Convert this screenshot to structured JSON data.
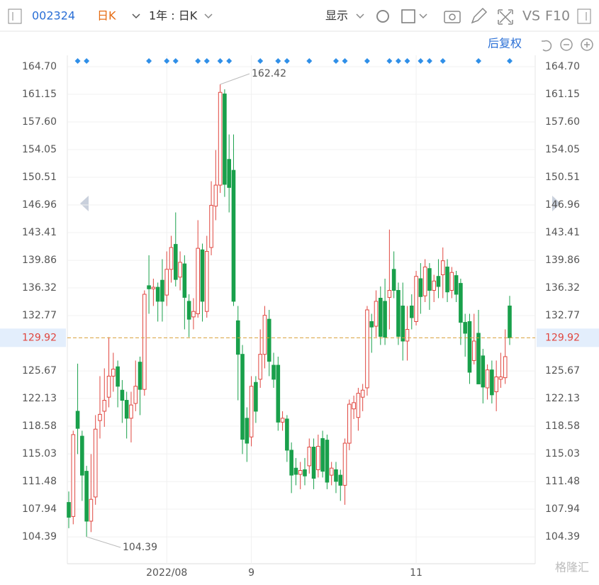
{
  "ui": {
    "code": "002324",
    "period": "日K",
    "range": "1年 : 日K",
    "display": "显示",
    "vs": "VS",
    "f10": "F10",
    "adjust": "后复权",
    "watermark": "格隆汇"
  },
  "chart_data": {
    "type": "candlestick",
    "open": [
      108.8,
      107.0,
      120.5,
      117.3,
      112.8,
      106.4,
      109.5,
      119.3,
      120.5,
      122.3,
      125.0,
      126.2,
      123.2,
      121.9,
      119.6,
      121.5,
      126.8,
      123.3,
      136.6,
      136.2,
      136.4,
      137.3,
      135.4,
      138.7,
      141.9,
      137.7,
      139.4,
      134.6,
      132.6,
      133.0,
      141.2,
      133.3,
      141.5,
      146.8,
      149.5,
      161.2,
      152.8,
      151.4,
      132.1,
      127.8,
      119.6,
      117.2,
      124.2,
      124.6,
      127.8,
      132.3,
      126.4,
      126.4,
      119.1,
      119.5,
      115.5,
      113.2,
      112.4,
      113.0,
      113.5,
      115.9,
      113.0,
      117.0,
      116.8,
      112.3,
      113.0,
      112.3,
      111.0,
      116.4,
      120.8,
      119.7,
      122.3,
      123.5,
      132.0,
      131.4,
      135.0,
      134.6,
      135.1,
      138.7,
      136.0,
      134.0,
      129.5,
      134.0,
      132.0,
      137.5,
      135.3,
      138.8,
      136.0,
      137.8,
      138.0,
      139.0,
      136.0,
      137.9,
      136.9,
      131.9,
      132.0,
      127.0,
      130.5,
      127.6,
      123.5,
      125.8,
      123.0,
      124.6,
      124.8,
      134.0
    ],
    "high": [
      110.2,
      118.0,
      126.6,
      118.0,
      113.5,
      115.0,
      120.0,
      125.0,
      126.0,
      130.0,
      128.0,
      127.0,
      124.5,
      123.0,
      123.0,
      127.0,
      127.5,
      136.0,
      140.5,
      137.5,
      137.0,
      140.0,
      141.0,
      143.0,
      146.0,
      141.0,
      140.5,
      135.5,
      135.0,
      145.0,
      142.0,
      143.0,
      150.0,
      154.0,
      162.42,
      161.8,
      156.0,
      156.0,
      134.0,
      129.0,
      121.0,
      125.0,
      125.0,
      131.0,
      134.0,
      133.5,
      128.0,
      127.5,
      120.5,
      120.0,
      116.5,
      114.5,
      114.0,
      114.5,
      117.0,
      117.0,
      117.5,
      118.0,
      117.5,
      114.0,
      114.0,
      113.0,
      117.0,
      122.0,
      122.5,
      123.5,
      124.0,
      134.0,
      133.0,
      136.0,
      136.5,
      137.5,
      143.8,
      141.0,
      137.0,
      137.0,
      134.0,
      135.5,
      138.5,
      139.5,
      140.0,
      139.5,
      138.0,
      140.0,
      141.5,
      140.0,
      139.0,
      138.5,
      137.5,
      133.0,
      133.0,
      133.0,
      133.5,
      128.5,
      126.5,
      127.0,
      127.0,
      128.0,
      131.0,
      135.3
    ],
    "low": [
      105.5,
      106.0,
      115.0,
      109.0,
      104.39,
      105.0,
      108.5,
      117.0,
      118.5,
      121.0,
      123.0,
      121.0,
      119.0,
      117.0,
      116.5,
      120.5,
      120.0,
      122.5,
      133.0,
      134.0,
      132.0,
      132.0,
      134.0,
      137.0,
      136.5,
      136.0,
      131.0,
      130.0,
      131.0,
      132.5,
      132.0,
      132.5,
      140.5,
      145.0,
      148.5,
      148.0,
      146.0,
      134.0,
      121.9,
      115.0,
      114.0,
      116.0,
      119.0,
      123.5,
      126.0,
      125.0,
      123.5,
      118.0,
      118.0,
      114.0,
      110.0,
      111.0,
      110.5,
      111.0,
      112.5,
      110.5,
      112.0,
      112.0,
      110.5,
      111.0,
      110.0,
      109.0,
      108.5,
      115.5,
      119.5,
      118.0,
      120.5,
      122.5,
      128.0,
      130.0,
      129.0,
      129.0,
      131.0,
      135.0,
      129.0,
      127.0,
      127.0,
      131.0,
      131.5,
      133.0,
      134.5,
      133.5,
      134.5,
      135.0,
      135.0,
      134.5,
      135.0,
      134.5,
      129.0,
      127.5,
      124.0,
      126.5,
      124.0,
      121.5,
      122.0,
      121.5,
      120.5,
      123.5,
      124.0,
      129.0
    ],
    "close": [
      106.9,
      117.5,
      118.3,
      112.3,
      106.4,
      109.2,
      118.2,
      120.1,
      121.9,
      125.0,
      125.9,
      123.7,
      121.9,
      119.6,
      121.3,
      123.7,
      123.3,
      135.5,
      136.2,
      136.4,
      134.6,
      134.6,
      138.7,
      141.5,
      137.4,
      139.6,
      135.1,
      132.3,
      133.3,
      141.4,
      134.6,
      141.0,
      146.9,
      149.5,
      161.4,
      149.6,
      149.2,
      134.6,
      127.8,
      116.9,
      116.4,
      123.7,
      120.5,
      127.8,
      132.8,
      126.9,
      124.6,
      119.1,
      119.6,
      115.5,
      112.3,
      112.4,
      112.9,
      112.2,
      115.9,
      111.9,
      116.0,
      112.8,
      111.4,
      113.2,
      111.5,
      111.0,
      116.4,
      121.4,
      121.6,
      122.8,
      123.2,
      133.5,
      131.3,
      134.6,
      130.1,
      130.0,
      136.0,
      136.0,
      130.1,
      129.5,
      131.0,
      132.5,
      137.8,
      135.2,
      139.0,
      136.0,
      137.2,
      136.5,
      139.8,
      135.8,
      138.3,
      135.5,
      131.9,
      130.5,
      125.5,
      129.5,
      124.0,
      123.6,
      125.8,
      122.6,
      124.9,
      124.9,
      127.5,
      129.92
    ],
    "up_color": "#e0463f",
    "down_color": "#19a04b",
    "event_markers": [
      2,
      4,
      18,
      22,
      24,
      29,
      31,
      34,
      36,
      43,
      47,
      49,
      54,
      60,
      62,
      67,
      72,
      74,
      76,
      79,
      81,
      84,
      92,
      99
    ],
    "marker_color": "#2f8fe8",
    "ylim": [
      100.94,
      166.15
    ],
    "yticks": [
      {
        "value": 164.7,
        "label": "164.70"
      },
      161.15,
      {
        "value": 157.6,
        "label": "157.60"
      },
      154.05,
      150.51,
      146.96,
      143.41,
      139.86,
      136.32,
      132.77,
      125.67,
      122.13,
      118.58,
      115.03,
      111.48,
      107.94,
      104.39
    ],
    "xticks": [
      {
        "value": 22,
        "label": "2022/08"
      },
      {
        "value": 41,
        "label": "9"
      },
      {
        "value": 78,
        "label": "11"
      }
    ],
    "grid": true,
    "last_price_color": "#d9a03a"
  }
}
